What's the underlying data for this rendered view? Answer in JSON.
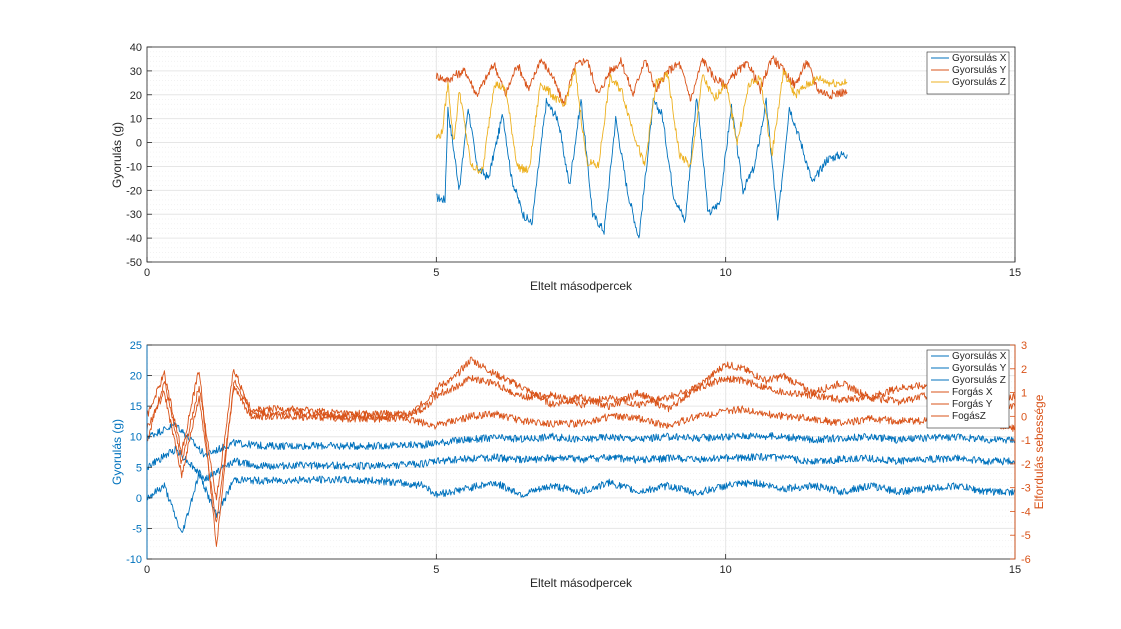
{
  "colors": {
    "blue": "#0072BD",
    "orange": "#D95319",
    "yellow": "#EDB120",
    "axis": "#262626",
    "grid": "#e6e6e6"
  },
  "chart_data": [
    {
      "type": "line",
      "xlabel": "Eltelt másodpercek",
      "ylabel": "Gyorulás (g)",
      "xlim": [
        0,
        15
      ],
      "ylim": [
        -50,
        40
      ],
      "xticks": [
        0,
        5,
        10,
        15
      ],
      "yticks": [
        -50,
        -40,
        -30,
        -20,
        -10,
        0,
        10,
        20,
        30,
        40
      ],
      "grid": true,
      "legend_position": "top-right",
      "series": [
        {
          "name": "Gyorsulás X",
          "color": "#0072BD",
          "x": [
            5.0,
            5.15,
            5.2,
            5.4,
            5.55,
            5.7,
            5.9,
            6.15,
            6.3,
            6.5,
            6.65,
            6.9,
            7.1,
            7.3,
            7.5,
            7.7,
            7.9,
            8.1,
            8.3,
            8.5,
            8.75,
            8.9,
            9.1,
            9.3,
            9.5,
            9.7,
            9.9,
            10.1,
            10.3,
            10.5,
            10.7,
            10.9,
            11.1,
            11.3,
            11.5,
            11.75,
            12.0,
            12.1
          ],
          "y": [
            -23,
            -24,
            14,
            -20,
            15,
            -10,
            -15,
            12,
            -15,
            -30,
            -34,
            17,
            10,
            -18,
            18,
            -30,
            -37,
            10,
            -20,
            -40,
            17,
            12,
            -22,
            -33,
            20,
            -30,
            -25,
            15,
            -20,
            -10,
            17,
            -33,
            15,
            0,
            -17,
            -7,
            -5,
            -5
          ]
        },
        {
          "name": "Gyorsulás Y",
          "color": "#D95319",
          "x": [
            5.0,
            5.2,
            5.3,
            5.5,
            5.7,
            6.0,
            6.2,
            6.4,
            6.6,
            6.8,
            7.0,
            7.2,
            7.4,
            7.6,
            7.8,
            8.0,
            8.2,
            8.4,
            8.6,
            8.8,
            9.0,
            9.2,
            9.4,
            9.6,
            9.8,
            10.0,
            10.2,
            10.4,
            10.6,
            10.8,
            11.0,
            11.2,
            11.4,
            11.6,
            11.8,
            12.0,
            12.1
          ],
          "y": [
            28,
            26,
            28,
            30,
            20,
            33,
            20,
            33,
            22,
            35,
            28,
            16,
            32,
            35,
            20,
            30,
            34,
            20,
            35,
            22,
            30,
            33,
            18,
            35,
            27,
            24,
            30,
            33,
            22,
            36,
            30,
            24,
            34,
            22,
            20,
            21,
            21
          ]
        },
        {
          "name": "Gyorsulás Z",
          "color": "#EDB120",
          "x": [
            5.0,
            5.1,
            5.2,
            5.3,
            5.4,
            5.6,
            5.8,
            6.0,
            6.2,
            6.4,
            6.6,
            6.8,
            7.0,
            7.2,
            7.4,
            7.6,
            7.8,
            8.0,
            8.2,
            8.4,
            8.6,
            8.8,
            9.0,
            9.2,
            9.4,
            9.6,
            9.8,
            10.0,
            10.2,
            10.4,
            10.6,
            10.8,
            11.0,
            11.2,
            11.4,
            11.6,
            11.8,
            12.0,
            12.1
          ],
          "y": [
            2,
            4,
            25,
            0,
            22,
            -10,
            -12,
            25,
            22,
            -10,
            -12,
            25,
            20,
            15,
            30,
            -8,
            -10,
            27,
            22,
            5,
            -10,
            25,
            28,
            -5,
            -10,
            28,
            18,
            25,
            0,
            24,
            27,
            -5,
            30,
            20,
            24,
            27,
            25,
            25,
            25
          ]
        }
      ]
    },
    {
      "type": "line",
      "xlabel": "Eltelt másodpercek",
      "ylabel": "Gyorulás (g)",
      "ylabel_right": "Elfordulás sebessége",
      "xlim": [
        0,
        15
      ],
      "ylim": [
        -10,
        25
      ],
      "ylim_right": [
        -6,
        3
      ],
      "xticks": [
        0,
        5,
        10,
        15
      ],
      "yticks": [
        -10,
        -5,
        0,
        5,
        10,
        15,
        20,
        25
      ],
      "yticks_right": [
        -6,
        -5,
        -4,
        -3,
        -2,
        -1,
        0,
        1,
        2,
        3
      ],
      "grid": true,
      "legend_position": "top-right",
      "series": [
        {
          "name": "Gyorsulás X",
          "axis": "left",
          "color": "#0072BD",
          "x": [
            0,
            0.5,
            1.0,
            1.5,
            2.0,
            3.0,
            4.0,
            4.8,
            5.0,
            5.5,
            6.0,
            6.5,
            7.0,
            7.5,
            8.0,
            8.5,
            9.0,
            9.5,
            10.0,
            10.5,
            11.0,
            11.5,
            12.0,
            12.5,
            13.0,
            13.5,
            14.0,
            14.5,
            15.0
          ],
          "y": [
            10,
            12,
            7,
            9,
            8.5,
            8.5,
            8.5,
            8.7,
            9.0,
            9.5,
            9.8,
            9.6,
            10,
            9.5,
            10,
            9.6,
            10,
            9.8,
            10,
            10.2,
            10,
            9.5,
            9.8,
            10,
            9.5,
            9.8,
            10,
            9.5,
            9.5
          ]
        },
        {
          "name": "Gyorsulás Y",
          "axis": "left",
          "color": "#0072BD",
          "x": [
            0,
            0.5,
            1.0,
            1.5,
            2.0,
            3.0,
            4.0,
            4.8,
            5.0,
            5.5,
            6.0,
            6.5,
            7.0,
            7.5,
            8.0,
            8.5,
            9.0,
            9.5,
            10.0,
            10.5,
            11.0,
            11.5,
            12.0,
            12.5,
            13.0,
            13.5,
            14.0,
            14.5,
            15.0
          ],
          "y": [
            5,
            8,
            3,
            6,
            5.2,
            5.3,
            5.2,
            5.6,
            6.0,
            6.4,
            6.6,
            6.2,
            6.5,
            6.3,
            6.6,
            6.2,
            6.5,
            6.2,
            6.5,
            6.7,
            6.5,
            6.0,
            6.3,
            6.5,
            6.0,
            6.3,
            6.5,
            6.0,
            6.0
          ]
        },
        {
          "name": "Gyorsulás Z",
          "axis": "left",
          "color": "#0072BD",
          "x": [
            0,
            0.3,
            0.6,
            0.9,
            1.2,
            1.5,
            2.0,
            3.0,
            4.0,
            4.8,
            5.0,
            5.5,
            6.0,
            6.5,
            7.0,
            7.5,
            8.0,
            8.5,
            9.0,
            9.5,
            10.0,
            10.5,
            11.0,
            11.5,
            12.0,
            12.5,
            13.0,
            13.5,
            14.0,
            14.5,
            15.0
          ],
          "y": [
            0,
            2,
            -6,
            4,
            -3,
            3,
            2.8,
            3.0,
            2.8,
            2.0,
            0.5,
            1.5,
            2.5,
            0.5,
            2.0,
            1.0,
            2.5,
            1.0,
            2.0,
            0.8,
            2.0,
            2.5,
            1.5,
            2.0,
            1.0,
            2.0,
            1.0,
            1.5,
            2.0,
            1.0,
            1.0
          ]
        },
        {
          "name": "Forgás X",
          "axis": "right",
          "color": "#D95319",
          "x": [
            0,
            0.3,
            0.6,
            0.9,
            1.2,
            1.5,
            1.8,
            2.5,
            3.5,
            4.5,
            4.8,
            5.0,
            5.3,
            5.6,
            6.0,
            6.5,
            7.0,
            7.5,
            8.0,
            8.5,
            9.0,
            9.5,
            10.0,
            10.3,
            10.7,
            11.0,
            11.5,
            12.0,
            12.5,
            13.0,
            13.5,
            14.0,
            14.5,
            15.0
          ],
          "y": [
            -1,
            1.5,
            -2,
            1.3,
            -3.5,
            2.0,
            0.1,
            0.2,
            0.0,
            0.0,
            0.6,
            1.2,
            1.6,
            2.4,
            1.8,
            1.2,
            0.5,
            0.8,
            0.4,
            1.0,
            0.3,
            1.2,
            2.2,
            2.0,
            1.5,
            1.7,
            1.0,
            1.4,
            0.8,
            1.2,
            1.3,
            0.9,
            1.0,
            0.8
          ]
        },
        {
          "name": "Forgás Y",
          "axis": "right",
          "color": "#D95319",
          "x": [
            0,
            0.3,
            0.6,
            0.9,
            1.2,
            1.5,
            1.8,
            2.5,
            3.5,
            4.5,
            4.8,
            5.0,
            5.3,
            5.6,
            6.0,
            6.5,
            7.0,
            7.5,
            8.0,
            8.5,
            9.0,
            9.5,
            10.0,
            10.3,
            10.7,
            11.0,
            11.5,
            12.0,
            12.5,
            13.0,
            13.5,
            14.0,
            14.5,
            15.0
          ],
          "y": [
            0,
            1.8,
            -1.5,
            2.0,
            -5.5,
            1.5,
            0.3,
            0.3,
            0.1,
            0.1,
            0.3,
            0.9,
            1.2,
            1.6,
            1.4,
            0.8,
            0.9,
            0.5,
            0.8,
            0.5,
            0.8,
            1.2,
            1.6,
            1.5,
            1.2,
            1.0,
            0.9,
            0.7,
            0.8,
            0.6,
            0.9,
            0.7,
            0.5,
            0.4
          ]
        },
        {
          "name": "FogásZ",
          "axis": "right",
          "color": "#D95319",
          "x": [
            0,
            0.3,
            0.6,
            0.9,
            1.2,
            1.5,
            1.8,
            2.5,
            3.5,
            4.5,
            4.8,
            5.0,
            5.3,
            5.6,
            6.0,
            6.5,
            7.0,
            7.5,
            8.0,
            8.5,
            9.0,
            9.5,
            10.0,
            10.3,
            10.7,
            11.0,
            11.5,
            12.0,
            12.5,
            13.0,
            13.5,
            14.0,
            14.5,
            15.0
          ],
          "y": [
            -0.5,
            1.0,
            -2.5,
            0.8,
            -4.5,
            1.2,
            0.0,
            0.0,
            -0.1,
            -0.1,
            -0.3,
            -0.4,
            -0.2,
            0.0,
            0.1,
            -0.2,
            -0.3,
            -0.3,
            0.0,
            -0.1,
            -0.4,
            0.0,
            0.2,
            0.3,
            0.1,
            0.0,
            -0.1,
            -0.3,
            -0.1,
            -0.2,
            -0.2,
            -0.1,
            -0.3,
            -0.5
          ]
        }
      ]
    }
  ]
}
